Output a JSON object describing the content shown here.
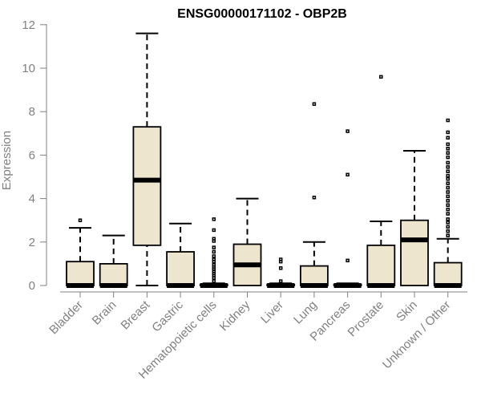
{
  "chart_data": {
    "type": "boxplot",
    "title": "ENSG00000171102 - OBP2B",
    "xlabel": "",
    "ylabel": "Expression",
    "ylim": [
      0,
      12
    ],
    "yticks": [
      0,
      2,
      4,
      6,
      8,
      10,
      12
    ],
    "grid": false,
    "legend": "none",
    "colors": {
      "box_fill": "#ede5cd",
      "box_stroke": "#000000",
      "axis": "#808080"
    },
    "categories": [
      "Bladder",
      "Brain",
      "Breast",
      "Gastric",
      "Hematopoietic cells",
      "Kidney",
      "Liver",
      "Lung",
      "Pancreas",
      "Prostate",
      "Skin",
      "Unknown / Other"
    ],
    "boxes": [
      {
        "category": "Bladder",
        "whisker_low": 0,
        "q1": 0,
        "median": 0,
        "q3": 1.1,
        "whisker_high": 2.65,
        "outliers": [
          3.0
        ]
      },
      {
        "category": "Brain",
        "whisker_low": 0,
        "q1": 0,
        "median": 0,
        "q3": 1.0,
        "whisker_high": 2.3,
        "outliers": []
      },
      {
        "category": "Breast",
        "whisker_low": 0,
        "q1": 1.85,
        "median": 4.85,
        "q3": 7.3,
        "whisker_high": 11.6,
        "outliers": []
      },
      {
        "category": "Gastric",
        "whisker_low": 0,
        "q1": 0,
        "median": 0,
        "q3": 1.55,
        "whisker_high": 2.85,
        "outliers": []
      },
      {
        "category": "Hematopoietic cells",
        "whisker_low": 0,
        "q1": 0,
        "median": 0,
        "q3": 0.05,
        "whisker_high": 0.1,
        "outliers": [
          0.2,
          0.35,
          0.45,
          0.55,
          0.65,
          0.75,
          0.85,
          0.95,
          1.1,
          1.2,
          1.35,
          1.55,
          1.75,
          2.05,
          2.15,
          2.55,
          3.05
        ]
      },
      {
        "category": "Kidney",
        "whisker_low": 0,
        "q1": 0,
        "median": 0.95,
        "q3": 1.9,
        "whisker_high": 4.0,
        "outliers": []
      },
      {
        "category": "Liver",
        "whisker_low": 0,
        "q1": 0,
        "median": 0,
        "q3": 0.05,
        "whisker_high": 0.1,
        "outliers": [
          0.2,
          0.8,
          1.1,
          1.2
        ]
      },
      {
        "category": "Lung",
        "whisker_low": 0,
        "q1": 0,
        "median": 0,
        "q3": 0.9,
        "whisker_high": 2.0,
        "outliers": [
          4.05,
          8.35
        ]
      },
      {
        "category": "Pancreas",
        "whisker_low": 0,
        "q1": 0,
        "median": 0,
        "q3": 0.05,
        "whisker_high": 0.1,
        "outliers": [
          1.15,
          5.1,
          7.1
        ]
      },
      {
        "category": "Prostate",
        "whisker_low": 0,
        "q1": 0,
        "median": 0,
        "q3": 1.85,
        "whisker_high": 2.95,
        "outliers": [
          9.6
        ]
      },
      {
        "category": "Skin",
        "whisker_low": 0,
        "q1": 0,
        "median": 2.1,
        "q3": 3.0,
        "whisker_high": 6.2,
        "outliers": []
      },
      {
        "category": "Unknown / Other",
        "whisker_low": 0,
        "q1": 0,
        "median": 0,
        "q3": 1.05,
        "whisker_high": 2.15,
        "outliers": [
          2.3,
          2.5,
          2.7,
          2.9,
          3.05,
          3.3,
          3.5,
          3.7,
          3.9,
          4.1,
          4.3,
          4.5,
          4.7,
          4.9,
          5.05,
          5.25,
          5.45,
          5.65,
          5.9,
          6.1,
          6.3,
          6.5,
          6.8,
          7.05,
          7.6
        ]
      }
    ]
  }
}
